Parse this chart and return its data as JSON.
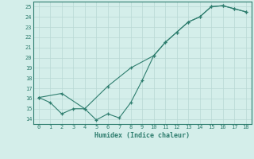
{
  "xlabel": "Humidex (Indice chaleur)",
  "line1_x": [
    0,
    2,
    4,
    6,
    8,
    10,
    11,
    12,
    13,
    14,
    15,
    16,
    17,
    18
  ],
  "line1_y": [
    16.1,
    16.5,
    15.0,
    17.2,
    19.0,
    20.2,
    21.5,
    22.5,
    23.5,
    24.0,
    25.0,
    25.1,
    24.8,
    24.5
  ],
  "line2_x": [
    0,
    1,
    2,
    3,
    4,
    5,
    6,
    7,
    8,
    9,
    10,
    11,
    12,
    13,
    14,
    15,
    16,
    17,
    18
  ],
  "line2_y": [
    16.1,
    15.6,
    14.5,
    15.0,
    15.0,
    13.9,
    14.5,
    14.1,
    15.6,
    17.8,
    20.2,
    21.5,
    22.5,
    23.5,
    24.0,
    25.0,
    25.1,
    24.8,
    24.5
  ],
  "line_color": "#2e7d6e",
  "bg_color": "#d4eeea",
  "grid_color": "#b8d8d4",
  "xlim": [
    -0.5,
    18.5
  ],
  "ylim": [
    13.5,
    25.5
  ],
  "yticks": [
    14,
    15,
    16,
    17,
    18,
    19,
    20,
    21,
    22,
    23,
    24,
    25
  ],
  "xticks": [
    0,
    1,
    2,
    3,
    4,
    5,
    6,
    7,
    8,
    9,
    10,
    11,
    12,
    13,
    14,
    15,
    16,
    17,
    18
  ]
}
